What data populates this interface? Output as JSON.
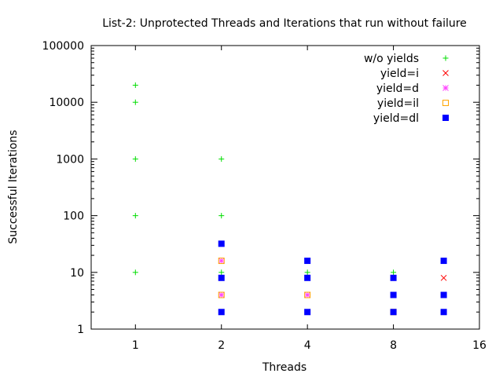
{
  "chart_data": {
    "type": "scatter",
    "title": "List-2: Unprotected Threads and Iterations that run without failure",
    "xlabel": "Threads",
    "ylabel": "Successful Iterations",
    "xscale": "log2",
    "yscale": "log10",
    "xlim": [
      0.7,
      16
    ],
    "ylim": [
      1,
      100000
    ],
    "xticks": [
      1,
      2,
      4,
      8,
      16
    ],
    "xtick_labels": [
      "1",
      "2",
      "4",
      "8",
      "16"
    ],
    "yticks": [
      1,
      10,
      100,
      1000,
      10000,
      100000
    ],
    "ytick_labels": [
      "1",
      "10",
      "100",
      "1000",
      "10000",
      "100000"
    ],
    "grid": false,
    "legend_position": "top-right",
    "series": [
      {
        "name": "w/o yields",
        "color": "#00dd00",
        "marker": "plus",
        "points": [
          [
            1,
            10
          ],
          [
            1,
            100
          ],
          [
            1,
            1000
          ],
          [
            1,
            10000
          ],
          [
            1,
            20000
          ],
          [
            2,
            10
          ],
          [
            2,
            100
          ],
          [
            2,
            1000
          ],
          [
            4,
            10
          ],
          [
            8,
            10
          ]
        ]
      },
      {
        "name": "yield=i",
        "color": "#ff0000",
        "marker": "cross",
        "points": [
          [
            12,
            8
          ]
        ]
      },
      {
        "name": "yield=d",
        "color": "#ff44ff",
        "marker": "star",
        "points": [
          [
            2,
            16
          ],
          [
            2,
            4
          ],
          [
            4,
            4
          ],
          [
            8,
            2
          ]
        ]
      },
      {
        "name": "yield=il",
        "color": "#ffa500",
        "marker": "open-square",
        "points": [
          [
            2,
            16
          ],
          [
            2,
            4
          ],
          [
            4,
            4
          ],
          [
            8,
            2
          ]
        ]
      },
      {
        "name": "yield=dl",
        "color": "#0000ff",
        "marker": "filled-square",
        "points": [
          [
            2,
            2
          ],
          [
            2,
            8
          ],
          [
            2,
            32
          ],
          [
            4,
            2
          ],
          [
            4,
            8
          ],
          [
            4,
            16
          ],
          [
            8,
            2
          ],
          [
            8,
            4
          ],
          [
            8,
            8
          ],
          [
            12,
            2
          ],
          [
            12,
            4
          ],
          [
            12,
            16
          ]
        ]
      }
    ]
  }
}
